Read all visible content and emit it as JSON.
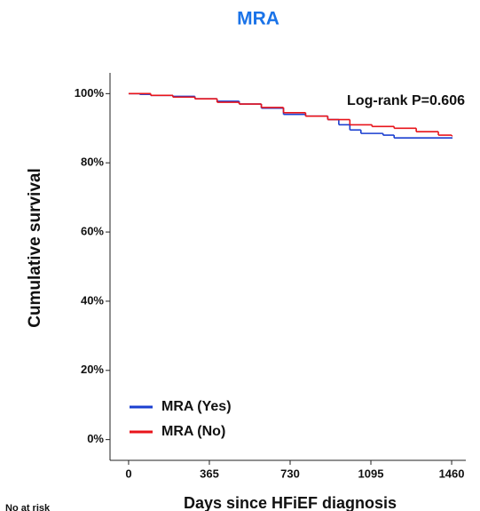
{
  "chart_data": {
    "type": "step",
    "title": "MRA",
    "x_label": "Days since HFiEF diagnosis",
    "y_label": "Cumulative survival",
    "annotation": "Log-rank P=0.606",
    "footer": "No at risk",
    "xlim": [
      -84,
      1524
    ],
    "xticks": [
      0,
      365,
      730,
      1095,
      1460
    ],
    "ylim": [
      -6,
      106
    ],
    "yticks": [
      {
        "value": 0,
        "label": "0%"
      },
      {
        "value": 20,
        "label": "20%"
      },
      {
        "value": 40,
        "label": "40%"
      },
      {
        "value": 60,
        "label": "60%"
      },
      {
        "value": 80,
        "label": "80%"
      },
      {
        "value": 100,
        "label": "100%"
      }
    ],
    "series": [
      {
        "name": "MRA (Yes)",
        "color": "#1a3fd0",
        "x": [
          0,
          50,
          100,
          200,
          300,
          400,
          500,
          600,
          700,
          800,
          900,
          950,
          1000,
          1050,
          1150,
          1200,
          1460
        ],
        "values": [
          100,
          99.8,
          99.5,
          99.2,
          98.5,
          97.8,
          97,
          95.8,
          94,
          93.5,
          92.5,
          91,
          89.5,
          88.5,
          88,
          87.2,
          87.2
        ]
      },
      {
        "name": "MRA (No)",
        "color": "#e8141b",
        "x": [
          0,
          100,
          200,
          300,
          400,
          500,
          600,
          700,
          800,
          900,
          1000,
          1100,
          1200,
          1300,
          1400,
          1460
        ],
        "values": [
          100,
          99.5,
          99,
          98.5,
          97.5,
          97,
          96,
          94.5,
          93.5,
          92.5,
          91,
          90.5,
          90,
          89,
          88,
          87.8
        ]
      }
    ]
  }
}
